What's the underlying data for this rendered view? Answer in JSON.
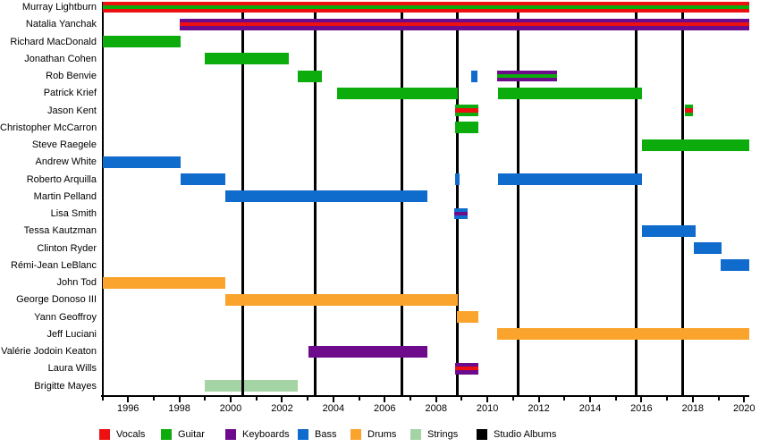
{
  "chart_data": {
    "type": "timeline",
    "description": "Band members timeline: roles of each member over years, with vertical lines marking studio albums",
    "x_min": 1995,
    "x_max": 2020.2,
    "tick_years": [
      1996,
      1998,
      2000,
      2002,
      2004,
      2006,
      2008,
      2010,
      2012,
      2014,
      2016,
      2018,
      2020
    ],
    "grid": "off",
    "legend_position": "bottom",
    "legend": [
      {
        "key": "vocals",
        "label": "Vocals",
        "color": "#ee1010"
      },
      {
        "key": "guitar",
        "label": "Guitar",
        "color": "#0cac0c"
      },
      {
        "key": "keyboards",
        "label": "Keyboards",
        "color": "#6d0b8c"
      },
      {
        "key": "bass",
        "label": "Bass",
        "color": "#0f6bcc"
      },
      {
        "key": "drums",
        "label": "Drums",
        "color": "#faa42d"
      },
      {
        "key": "strings",
        "label": "Strings",
        "color": "#a4d3a4"
      },
      {
        "key": "albums",
        "label": "Studio Albums",
        "color": "#000000"
      }
    ],
    "album_lines": [
      2000.46,
      2003.28,
      2006.66,
      2008.84,
      2011.19,
      2015.79,
      2017.62
    ],
    "members": [
      {
        "name": "Murray Lightburn",
        "bars": [
          {
            "start": 1995,
            "end": 2020.2,
            "stripes": [
              "vocals",
              "guitar",
              "vocals"
            ]
          }
        ]
      },
      {
        "name": "Natalia Yanchak",
        "bars": [
          {
            "start": 1998,
            "end": 2020.2,
            "stripes": [
              "keyboards",
              "vocals",
              "keyboards"
            ]
          }
        ]
      },
      {
        "name": "Richard MacDonald",
        "bars": [
          {
            "start": 1995,
            "end": 1998.05,
            "stripes": [
              "guitar"
            ]
          }
        ]
      },
      {
        "name": "Jonathan Cohen",
        "bars": [
          {
            "start": 1999.0,
            "end": 2002.26,
            "stripes": [
              "guitar"
            ]
          }
        ]
      },
      {
        "name": "Rob Benvie",
        "bars": [
          {
            "start": 2002.62,
            "end": 2003.56,
            "stripes": [
              "guitar"
            ]
          },
          {
            "start": 2009.37,
            "end": 2009.62,
            "stripes": [
              "bass"
            ]
          },
          {
            "start": 2010.38,
            "end": 2012.72,
            "stripes": [
              "keyboards",
              "guitar",
              "keyboards"
            ]
          }
        ]
      },
      {
        "name": "Patrick Krief",
        "bars": [
          {
            "start": 2004.15,
            "end": 2008.85,
            "stripes": [
              "guitar"
            ]
          },
          {
            "start": 2010.4,
            "end": 2016.02,
            "stripes": [
              "guitar"
            ]
          }
        ]
      },
      {
        "name": "Jason Kent",
        "bars": [
          {
            "start": 2008.75,
            "end": 2009.65,
            "stripes": [
              "guitar",
              "vocals",
              "guitar"
            ]
          },
          {
            "start": 2017.7,
            "end": 2018.01,
            "stripes": [
              "guitar",
              "vocals",
              "guitar"
            ]
          }
        ]
      },
      {
        "name": "Christopher McCarron",
        "bars": [
          {
            "start": 2008.75,
            "end": 2009.65,
            "stripes": [
              "guitar"
            ]
          }
        ]
      },
      {
        "name": "Steve Raegele",
        "bars": [
          {
            "start": 2016.02,
            "end": 2020.2,
            "stripes": [
              "guitar"
            ]
          }
        ]
      },
      {
        "name": "Andrew White",
        "bars": [
          {
            "start": 1995,
            "end": 1998.05,
            "stripes": [
              "bass"
            ]
          }
        ]
      },
      {
        "name": "Roberto Arquilla",
        "bars": [
          {
            "start": 1998.05,
            "end": 1999.8,
            "stripes": [
              "bass"
            ]
          },
          {
            "start": 2008.75,
            "end": 2008.9,
            "stripes": [
              "bass"
            ]
          },
          {
            "start": 2010.42,
            "end": 2016.02,
            "stripes": [
              "bass"
            ]
          }
        ]
      },
      {
        "name": "Martin Pelland",
        "bars": [
          {
            "start": 1999.78,
            "end": 2007.67,
            "stripes": [
              "bass"
            ]
          }
        ]
      },
      {
        "name": "Lisa Smith",
        "bars": [
          {
            "start": 2008.7,
            "end": 2009.23,
            "stripes": [
              "bass",
              "keyboards",
              "bass"
            ]
          }
        ]
      },
      {
        "name": "Tessa Kautzman",
        "bars": [
          {
            "start": 2016.02,
            "end": 2018.11,
            "stripes": [
              "bass"
            ]
          }
        ]
      },
      {
        "name": "Clinton Ryder",
        "bars": [
          {
            "start": 2018.05,
            "end": 2019.13,
            "stripes": [
              "bass"
            ]
          }
        ]
      },
      {
        "name": "Rémi-Jean LeBlanc",
        "bars": [
          {
            "start": 2019.1,
            "end": 2020.2,
            "stripes": [
              "bass"
            ]
          }
        ]
      },
      {
        "name": "John Tod",
        "bars": [
          {
            "start": 1995,
            "end": 1999.8,
            "stripes": [
              "drums"
            ]
          }
        ]
      },
      {
        "name": "George Donoso III",
        "bars": [
          {
            "start": 1999.78,
            "end": 2008.85,
            "stripes": [
              "drums"
            ]
          }
        ]
      },
      {
        "name": "Yann Geoffroy",
        "bars": [
          {
            "start": 2008.8,
            "end": 2009.65,
            "stripes": [
              "drums"
            ]
          }
        ]
      },
      {
        "name": "Jeff Luciani",
        "bars": [
          {
            "start": 2010.38,
            "end": 2020.2,
            "stripes": [
              "drums"
            ]
          }
        ]
      },
      {
        "name": "Valérie Jodoin Keaton",
        "bars": [
          {
            "start": 2003.03,
            "end": 2007.67,
            "stripes": [
              "keyboards"
            ]
          }
        ]
      },
      {
        "name": "Laura Wills",
        "bars": [
          {
            "start": 2008.75,
            "end": 2009.65,
            "stripes": [
              "keyboards",
              "vocals",
              "keyboards"
            ]
          }
        ]
      },
      {
        "name": "Brigitte Mayes",
        "bars": [
          {
            "start": 1999.0,
            "end": 2002.62,
            "stripes": [
              "strings"
            ]
          }
        ]
      }
    ]
  }
}
